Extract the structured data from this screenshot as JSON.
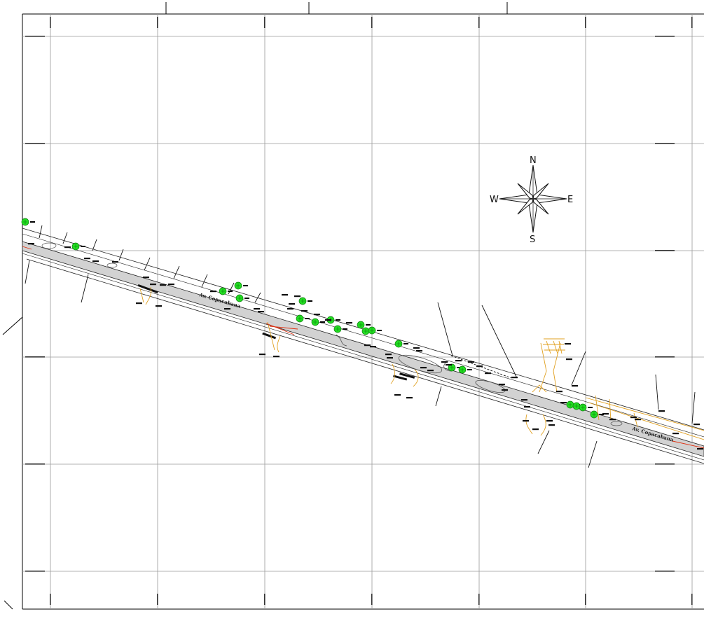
{
  "map": {
    "street_labels": [
      "Av. Copacabana",
      "Av. Copacabana"
    ],
    "compass": {
      "north": "N",
      "south": "S",
      "east": "E",
      "west": "W"
    },
    "colors": {
      "grid": "#9a9a9a",
      "road_band": "#d2d2d2",
      "road_edge": "#222222",
      "tree": "#22dd22",
      "tree_outline": "#0a7a0a",
      "utility": "#e0a020",
      "utility_red": "#e03010",
      "tag": "#111111",
      "frame": "#000000"
    }
  }
}
